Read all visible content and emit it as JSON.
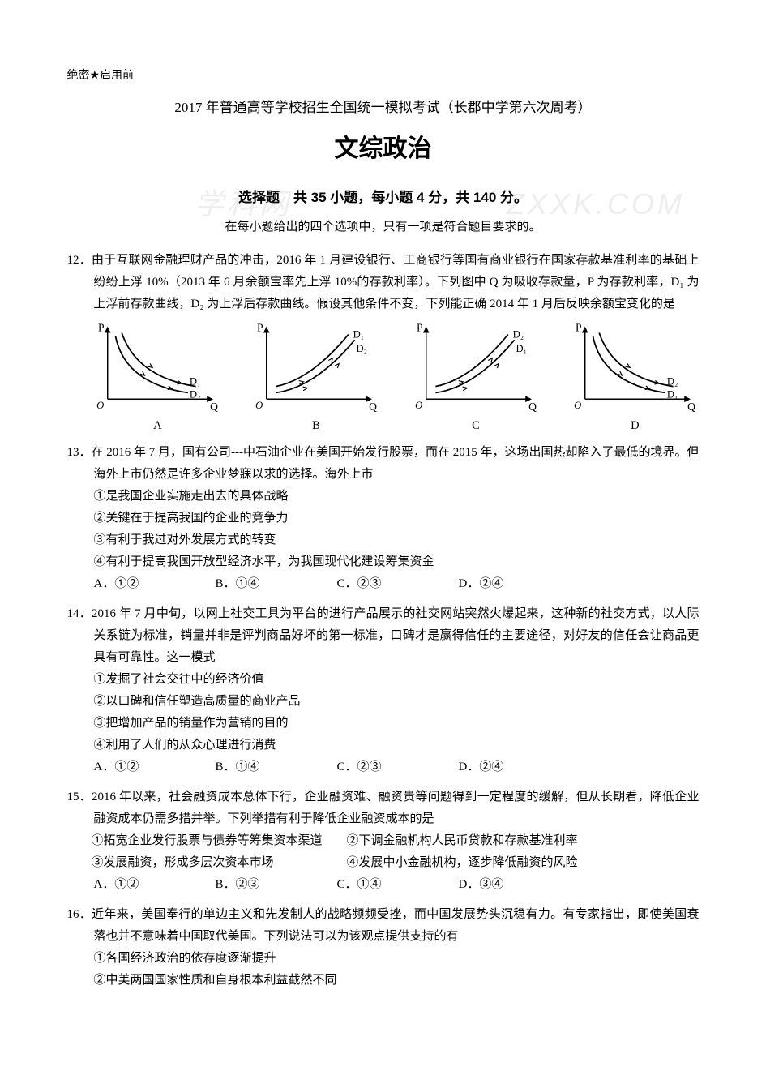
{
  "watermark": {
    "left": "学科网",
    "right": "ZXXK.COM"
  },
  "header": {
    "mark_prefix": "绝密",
    "mark_star": "★",
    "mark_suffix": "启用前",
    "exam_title": "2017 年普通高等学校招生全国统一模拟考试（长郡中学第六次周考）",
    "subject": "文综政治",
    "section": "选择题　共 35 小题，每小题 4 分，共 140 分。",
    "instruction": "在每小题给出的四个选项中，只有一项是符合题目要求的。"
  },
  "charts": {
    "labels": {
      "A": "A",
      "B": "B",
      "C": "C",
      "D": "D"
    },
    "axis_color": "#000000",
    "line_color": "#000000",
    "arrow_size": 6,
    "data": {
      "A": {
        "type": "downward",
        "d1": "D₁",
        "d2": "D₂",
        "d1_first": true
      },
      "B": {
        "type": "upward",
        "d1": "D₁",
        "d2": "D₂",
        "d1_first": true
      },
      "C": {
        "type": "upward",
        "d1": "D₁",
        "d2": "D₂",
        "d1_first": false
      },
      "D": {
        "type": "downward",
        "d1": "D₁",
        "d2": "D₂",
        "d1_first": false
      }
    }
  },
  "questions": [
    {
      "num": "12．",
      "text": "由于互联网金融理财产品的冲击，2016 年 1 月建设银行、工商银行等国有商业银行在国家存款基准利率的基础上纷纷上浮 10%（2013 年 6 月余额宝率先上浮 10%的存款利率）。下列图中 Q 为吸收存款量，P 为存款利率，D₁ 为上浮前存款曲线，D₂ 为上浮后存款曲线。假设其他条件不变，下列能正确 2014 年 1 月后反映余额宝变化的是",
      "has_chart": true
    },
    {
      "num": "13．",
      "text": "在 2016 年 7 月，国有公司---中石油企业在美国开始发行股票，而在 2015 年，这场出国热却陷入了最低的境界。但海外上市仍然是许多企业梦寐以求的选择。海外上市",
      "subs": [
        "①是我国企业实施走出去的具体战略",
        "②关键在于提高我国的企业的竞争力",
        "③有利于我过对外发展方式的转变",
        "④有利于提高我国开放型经济水平，为我国现代化建设筹集资金"
      ],
      "options": [
        "A．①②",
        "B．①④",
        "C．②③",
        "D．②④"
      ]
    },
    {
      "num": "14．",
      "text": "2016 年 7 月中旬，以网上社交工具为平台的进行产品展示的社交网站突然火爆起来，这种新的社交方式，以人际关系链为标准，销量并非是评判商品好坏的第一标准，口碑才是赢得信任的主要途径，对好友的信任会让商品更具有可靠性。这一模式",
      "subs": [
        "①发掘了社会交往中的经济价值",
        "②以口碑和信任塑造高质量的商业产品",
        "③把增加产品的销量作为营销的目的",
        "④利用了人们的从众心理进行消费"
      ],
      "options": [
        "A．①②",
        "B．①④",
        "C．②③",
        "D．②④"
      ]
    },
    {
      "num": "15．",
      "text": "2016 年以来，社会融资成本总体下行，企业融资难、融资贵等问题得到一定程度的缓解，但从长期看，降低企业融资成本仍需多措并举。下列举措有利于降低企业融资成本的是",
      "subs_inline": [
        "　　①拓宽企业发行股票与债券等筹集资本渠道　　②下调金融机构人民币贷款和存款基准利率",
        "　　③发展融资，形成多层次资本市场　　　　　　④发展中小金融机构，逐步降低融资的风险"
      ],
      "options": [
        "A．①②",
        "B．②③",
        "C．①④",
        "D．③④"
      ]
    },
    {
      "num": "16．",
      "text": "近年来，美国奉行的单边主义和先发制人的战略频频受挫，而中国发展势头沉稳有力。有专家指出，即使美国衰落也并不意味着中国取代美国。下列说法可以为该观点提供支持的有",
      "subs": [
        "①各国经济政治的依存度逐渐提升",
        "②中美两国国家性质和自身根本利益截然不同"
      ]
    }
  ]
}
